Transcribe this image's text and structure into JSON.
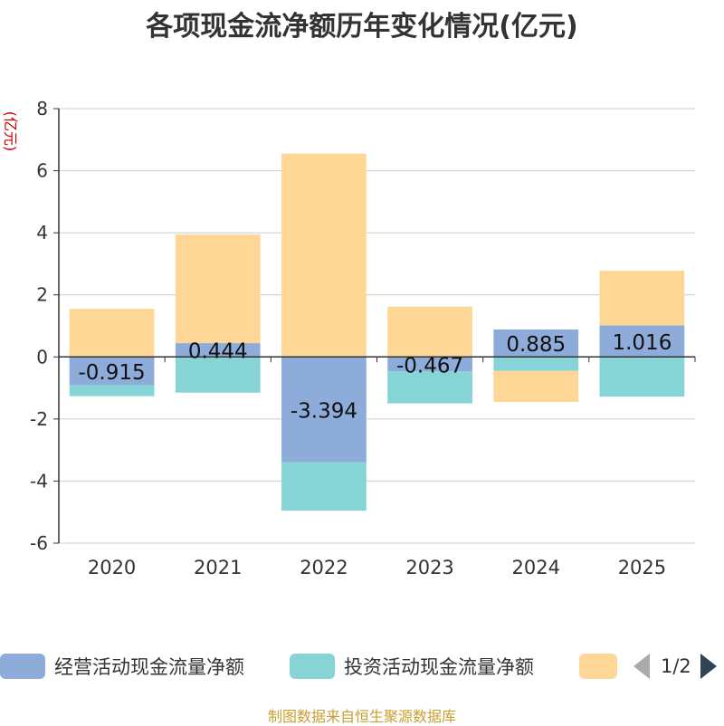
{
  "chart_data": {
    "type": "bar",
    "stacked": true,
    "title": "各项现金流净额历年变化情况(亿元)",
    "ylabel": "(亿元)",
    "xlabel": "",
    "categories": [
      "2020",
      "2021",
      "2022",
      "2023",
      "2024",
      "2025"
    ],
    "ylim": [
      -6,
      8
    ],
    "yticks": [
      -6,
      -4,
      -2,
      0,
      2,
      4,
      6,
      8
    ],
    "grid": true,
    "series": [
      {
        "name": "经营活动现金流量净额",
        "color": "#8eacda",
        "values": [
          -0.915,
          0.444,
          -3.394,
          -0.467,
          0.885,
          1.016
        ],
        "labels": [
          "-0.915",
          "0.444",
          "-3.394",
          "-0.467",
          "0.885",
          "1.016"
        ]
      },
      {
        "name": "投资活动现金流量净额",
        "color": "#86d4d6",
        "values": [
          -0.35,
          -1.15,
          -1.56,
          -1.03,
          -0.45,
          -1.28
        ]
      },
      {
        "name": "",
        "color": "#fed797",
        "values": [
          1.55,
          3.5,
          6.55,
          1.62,
          -1.0,
          1.76
        ]
      }
    ],
    "legend_position": "bottom"
  },
  "legend": {
    "page": "1/2"
  },
  "footer": {
    "source": "制图数据来自恒生聚源数据库"
  }
}
